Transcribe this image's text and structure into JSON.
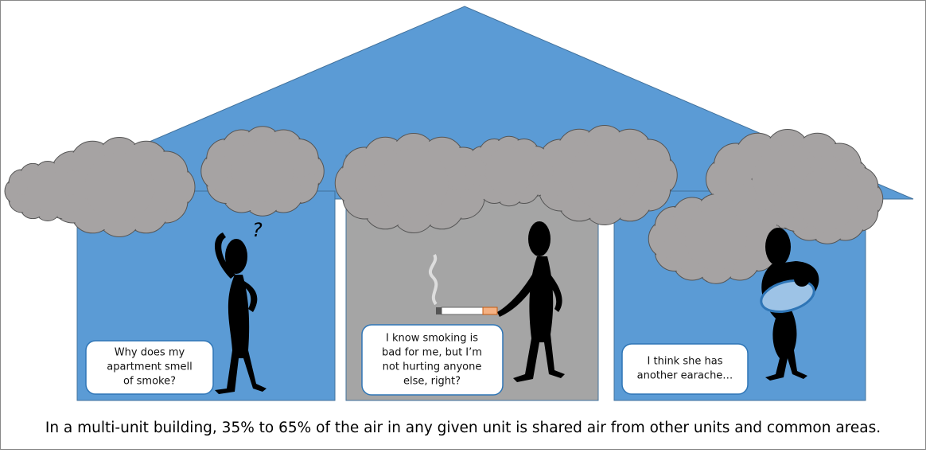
{
  "bubbles": [
    {
      "lines": [
        "Why does my",
        "apartment smell",
        "of smoke?"
      ]
    },
    {
      "lines": [
        "I know smoking is",
        "bad for me, but I’m",
        "not hurting anyone",
        "else, right?"
      ]
    },
    {
      "lines": [
        "I think she has",
        "another earache…"
      ]
    }
  ],
  "thought": "?",
  "caption": "In a multi-unit building, 35% to 65% of the air in any given unit is shared air from other units and common areas."
}
